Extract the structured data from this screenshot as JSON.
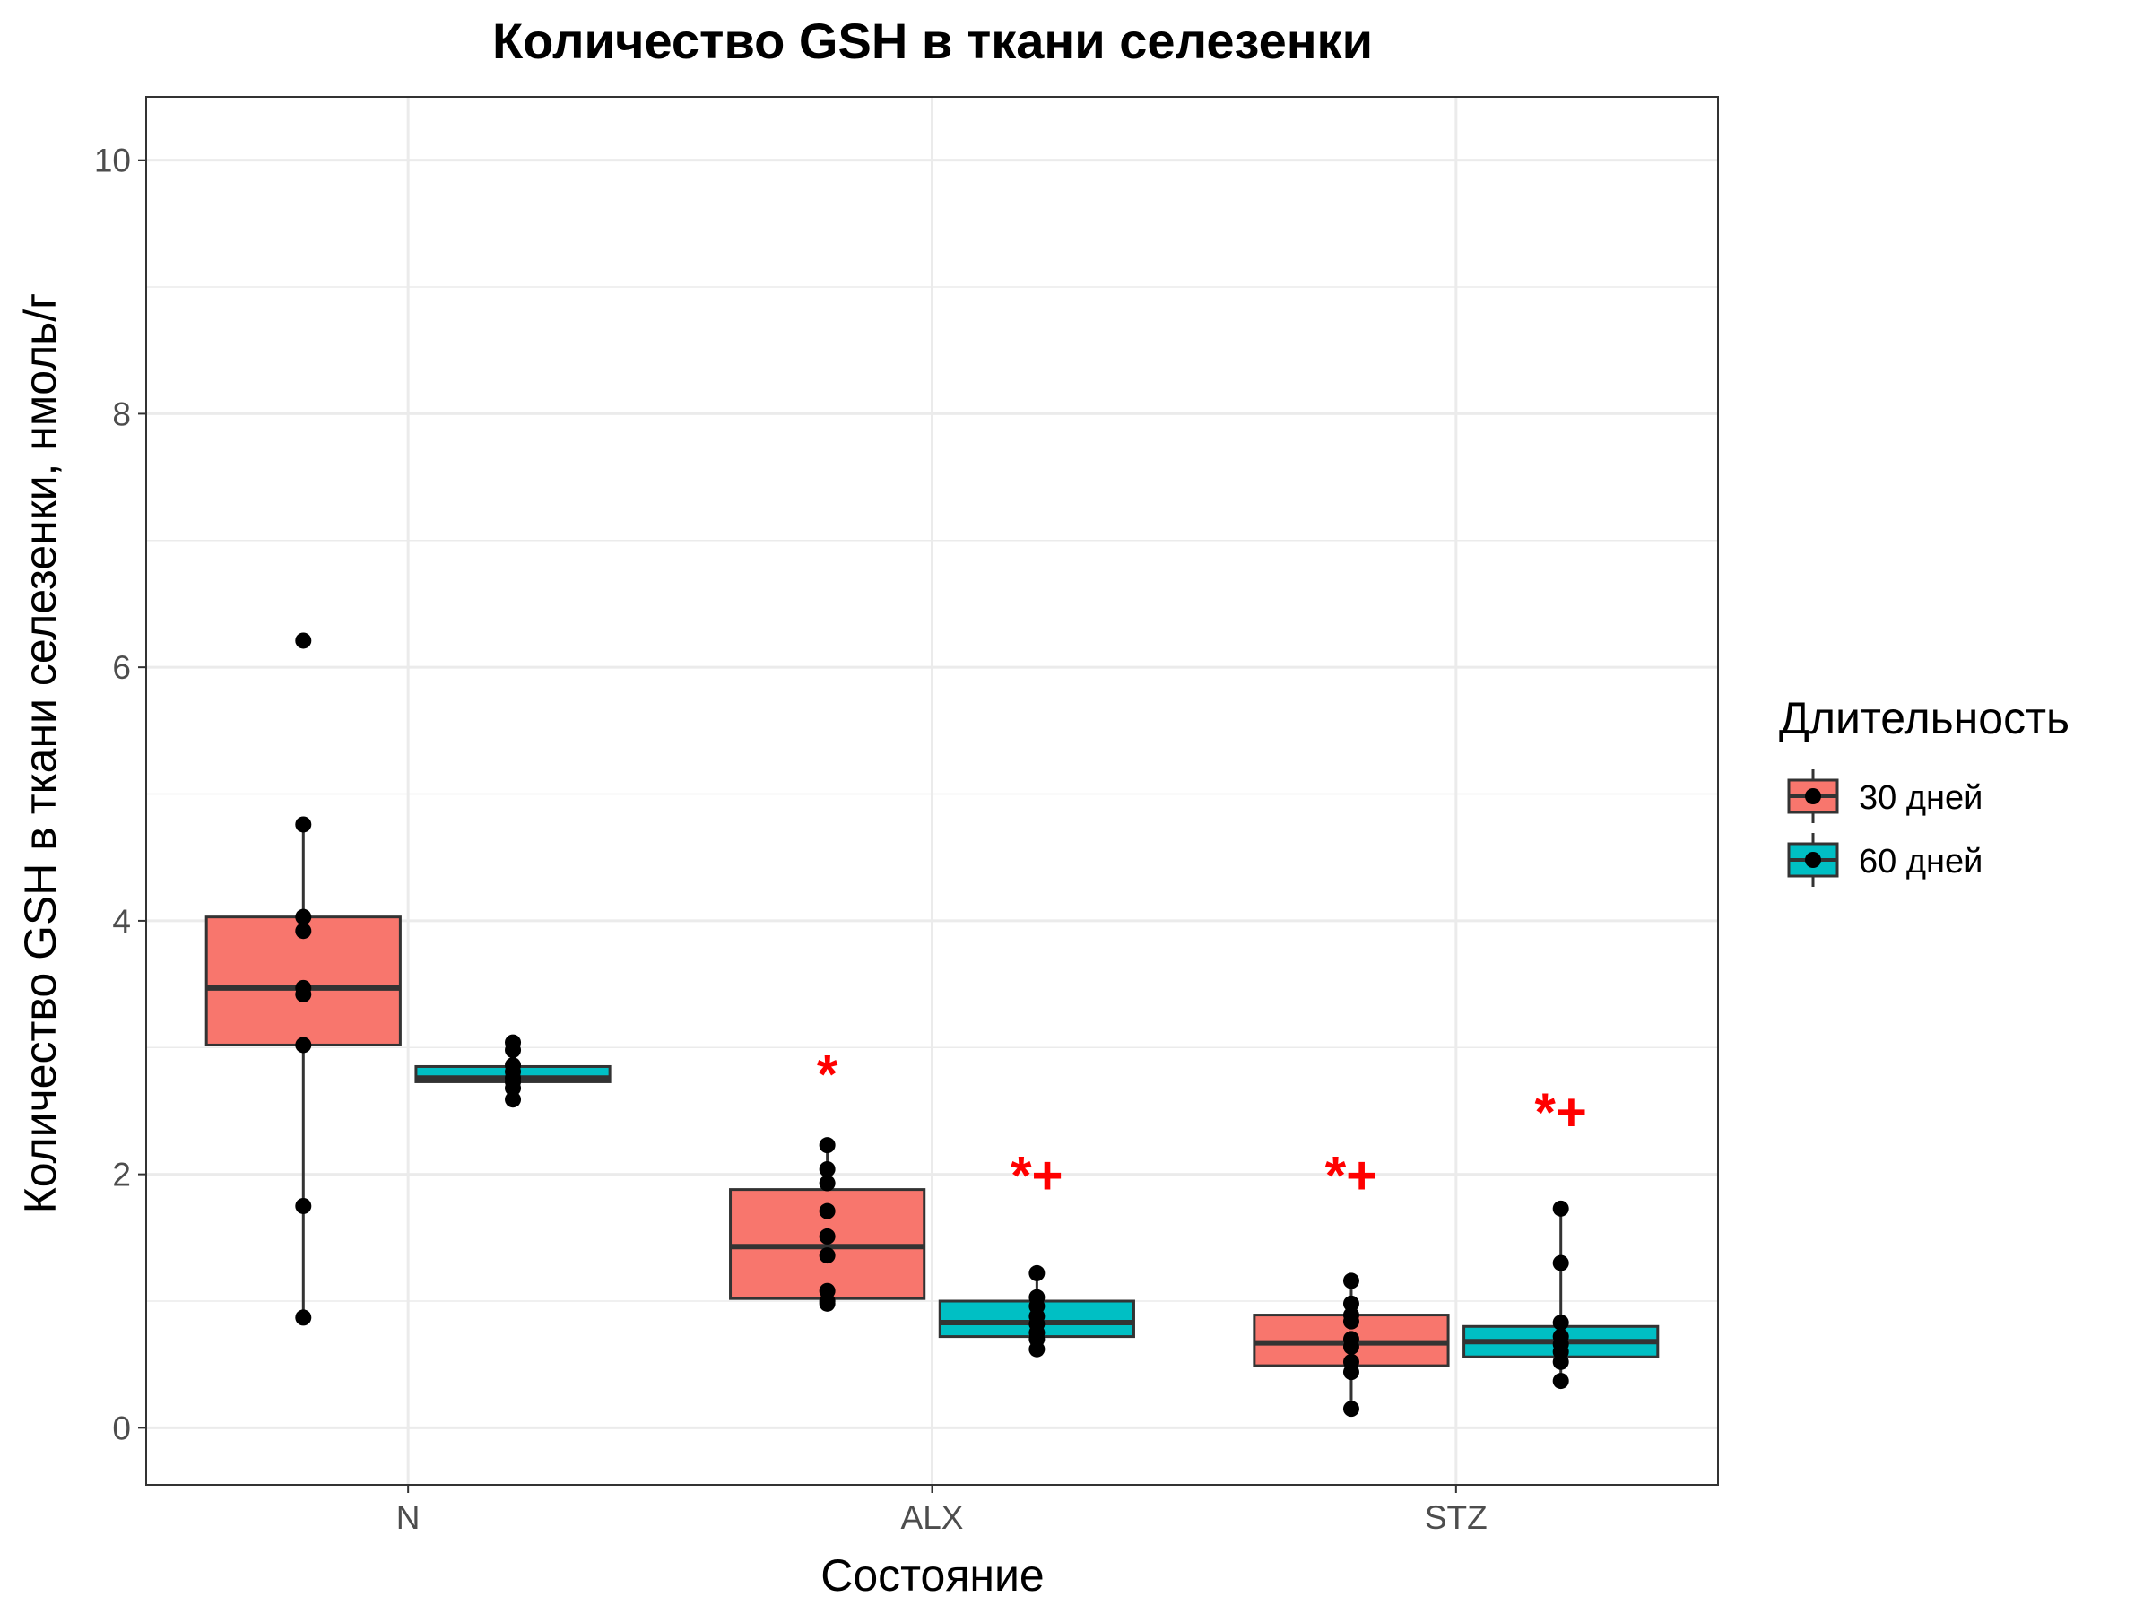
{
  "chart_data": {
    "type": "box",
    "title": "Количество GSH в ткани селезенки",
    "xlabel": "Состояние",
    "ylabel": "Количество GSH в ткани селезенки, нмоль/г",
    "categories": [
      "N",
      "ALX",
      "STZ"
    ],
    "ylim": [
      -0.45,
      10.5
    ],
    "yticks": [
      0,
      2,
      4,
      6,
      8,
      10
    ],
    "grid": true,
    "legend": {
      "title": "Длительность",
      "position": "right",
      "entries": [
        {
          "label": "30 дней",
          "color": "#F8766D"
        },
        {
          "label": "60 дней",
          "color": "#00BFC4"
        }
      ]
    },
    "series": [
      {
        "name": "30 дней",
        "color": "#F8766D",
        "boxes": [
          {
            "category": "N",
            "min": 0.87,
            "q1": 3.02,
            "median": 3.47,
            "q3": 4.03,
            "max": 4.76,
            "points": [
              6.21,
              4.76,
              4.03,
              3.92,
              3.47,
              3.42,
              3.02,
              1.75,
              0.87
            ]
          },
          {
            "category": "ALX",
            "min": 0.98,
            "q1": 1.02,
            "median": 1.43,
            "q3": 1.88,
            "max": 2.23,
            "points": [
              2.23,
              2.04,
              1.93,
              1.71,
              1.51,
              1.36,
              1.08,
              1.0,
              0.98
            ]
          },
          {
            "category": "STZ",
            "min": 0.15,
            "q1": 0.49,
            "median": 0.67,
            "q3": 0.89,
            "max": 1.16,
            "points": [
              1.16,
              0.98,
              0.89,
              0.84,
              0.7,
              0.64,
              0.52,
              0.44,
              0.15
            ]
          }
        ]
      },
      {
        "name": "60 дней",
        "color": "#00BFC4",
        "boxes": [
          {
            "category": "N",
            "min": 2.59,
            "q1": 2.73,
            "median": 2.76,
            "q3": 2.85,
            "max": 3.04,
            "points": [
              3.04,
              2.98,
              2.86,
              2.81,
              2.76,
              2.73,
              2.68,
              2.59
            ]
          },
          {
            "category": "ALX",
            "min": 0.62,
            "q1": 0.72,
            "median": 0.83,
            "q3": 1.0,
            "max": 1.22,
            "points": [
              1.22,
              1.03,
              0.96,
              0.88,
              0.82,
              0.75,
              0.7,
              0.62
            ]
          },
          {
            "category": "STZ",
            "min": 0.37,
            "q1": 0.56,
            "median": 0.68,
            "q3": 0.8,
            "max": 1.73,
            "points": [
              1.73,
              1.3,
              0.83,
              0.72,
              0.66,
              0.6,
              0.52,
              0.37
            ]
          }
        ]
      }
    ],
    "annotations": [
      {
        "text": "*",
        "category": "ALX",
        "series": "30 дней",
        "y": 2.8
      },
      {
        "text": "*+",
        "category": "ALX",
        "series": "60 дней",
        "y": 2.0
      },
      {
        "text": "*+",
        "category": "STZ",
        "series": "30 дней",
        "y": 2.0
      },
      {
        "text": "*+",
        "category": "STZ",
        "series": "60 дней",
        "y": 2.5
      }
    ]
  }
}
